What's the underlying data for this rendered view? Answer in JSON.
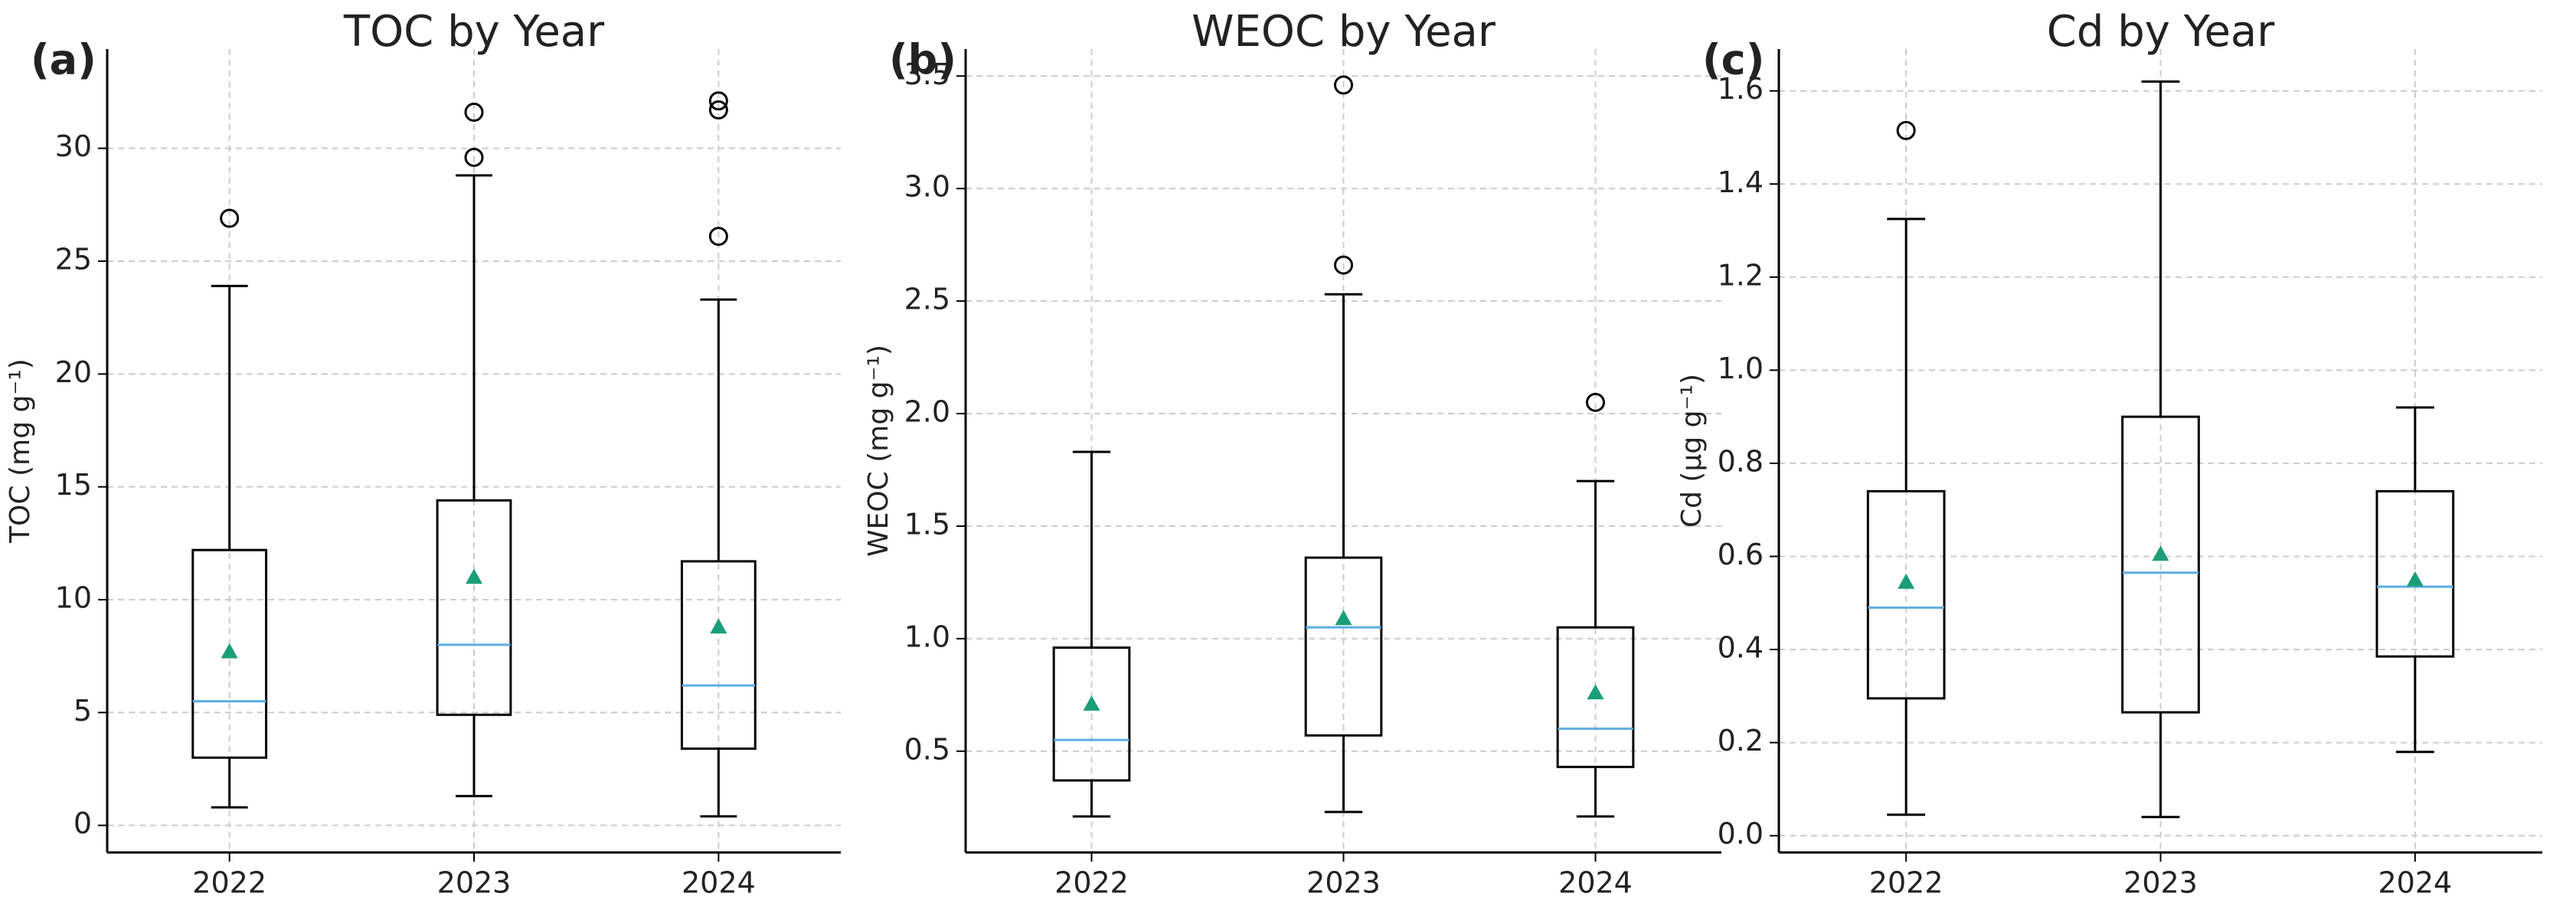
{
  "chart_data": [
    {
      "type": "box",
      "panel_label": "(a)",
      "title": "TOC by Year",
      "y_label": "TOC (mg g⁻¹)",
      "categories": [
        "2022",
        "2023",
        "2024"
      ],
      "box_color": "#000000",
      "median_color": "#5dade2",
      "mean_color": "#1a9e77",
      "ylim": [
        -1.2,
        34.4
      ],
      "yticks": [
        0,
        5,
        10,
        15,
        20,
        25,
        30
      ],
      "grid": true,
      "boxes": [
        {
          "whisker_low": 0.8,
          "q1": 3.0,
          "median": 5.5,
          "q3": 12.2,
          "whisker_high": 23.9,
          "mean": 7.7,
          "outliers": [
            26.9
          ]
        },
        {
          "whisker_low": 1.3,
          "q1": 4.9,
          "median": 8.0,
          "q3": 14.4,
          "whisker_high": 28.8,
          "mean": 11.0,
          "outliers": [
            29.6,
            31.6
          ]
        },
        {
          "whisker_low": 0.4,
          "q1": 3.4,
          "median": 6.2,
          "q3": 11.7,
          "whisker_high": 23.3,
          "mean": 8.8,
          "outliers": [
            26.1,
            31.7,
            32.1
          ]
        }
      ]
    },
    {
      "type": "box",
      "panel_label": "(b)",
      "title": "WEOC by Year",
      "y_label": "WEOC (mg g⁻¹)",
      "categories": [
        "2022",
        "2023",
        "2024"
      ],
      "box_color": "#000000",
      "median_color": "#5dade2",
      "mean_color": "#1a9e77",
      "ylim": [
        0.05,
        3.62
      ],
      "yticks": [
        0.5,
        {
          "value": 1,
          "label": "1.0"
        },
        1.5,
        {
          "value": 2,
          "label": "2.0"
        },
        2.5,
        {
          "value": 3,
          "label": "3.0"
        },
        3.5
      ],
      "grid": true,
      "boxes": [
        {
          "whisker_low": 0.21,
          "q1": 0.37,
          "median": 0.55,
          "q3": 0.96,
          "whisker_high": 1.83,
          "mean": 0.71,
          "outliers": []
        },
        {
          "whisker_low": 0.23,
          "q1": 0.57,
          "median": 1.05,
          "q3": 1.36,
          "whisker_high": 2.53,
          "mean": 1.09,
          "outliers": [
            2.66,
            3.46
          ]
        },
        {
          "whisker_low": 0.21,
          "q1": 0.43,
          "median": 0.6,
          "q3": 1.05,
          "whisker_high": 1.7,
          "mean": 0.76,
          "outliers": [
            2.05
          ]
        }
      ]
    },
    {
      "type": "box",
      "panel_label": "(c)",
      "title": "Cd by Year",
      "y_label": "Cd (μg g⁻¹)",
      "categories": [
        "2022",
        "2023",
        "2024"
      ],
      "box_color": "#000000",
      "median_color": "#5dade2",
      "mean_color": "#1a9e77",
      "ylim": [
        -0.036,
        1.69
      ],
      "yticks": [
        {
          "value": 0,
          "label": "0.0"
        },
        0.2,
        0.4,
        0.6,
        0.8,
        {
          "value": 1,
          "label": "1.0"
        },
        1.2,
        1.4,
        1.6
      ],
      "grid": true,
      "boxes": [
        {
          "whisker_low": 0.045,
          "q1": 0.295,
          "median": 0.49,
          "q3": 0.74,
          "whisker_high": 1.325,
          "mean": 0.545,
          "outliers": [
            1.515
          ]
        },
        {
          "whisker_low": 0.04,
          "q1": 0.265,
          "median": 0.565,
          "q3": 0.9,
          "whisker_high": 1.62,
          "mean": 0.605,
          "outliers": []
        },
        {
          "whisker_low": 0.18,
          "q1": 0.385,
          "median": 0.535,
          "q3": 0.74,
          "whisker_high": 0.92,
          "mean": 0.55,
          "outliers": []
        }
      ]
    }
  ]
}
